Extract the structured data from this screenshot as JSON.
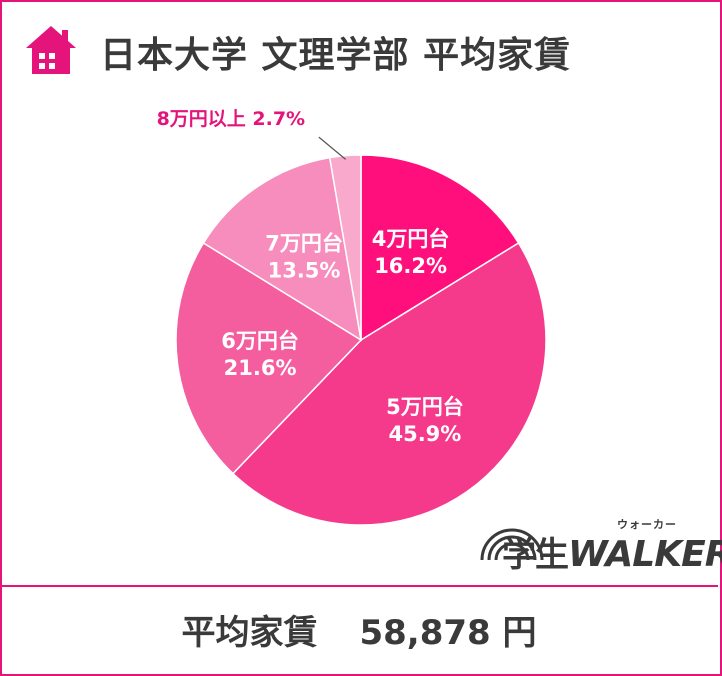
{
  "header": {
    "title": "日本大学 文理学部 平均家賃",
    "icon": "house-icon"
  },
  "chart_data": {
    "type": "pie",
    "categories": [
      "4万円台",
      "5万円台",
      "6万円台",
      "7万円台",
      "8万円以上"
    ],
    "values": [
      16.2,
      45.9,
      21.6,
      13.5,
      2.7
    ],
    "labels": [
      "4万円台",
      "5万円台",
      "6万円台",
      "7万円台",
      "8万円以上"
    ],
    "percent_labels": [
      "16.2%",
      "45.9%",
      "21.6%",
      "13.5%",
      "2.7%"
    ],
    "colors": [
      "#ff0f7b",
      "#f53a8c",
      "#f45d9e",
      "#f78dbc",
      "#f8a9cc"
    ],
    "label_colors": [
      "#ffffff",
      "#ffffff",
      "#ffffff",
      "#ffffff",
      "#e4147a"
    ],
    "start_angle": "12 o'clock",
    "direction": "clockwise",
    "legend": "none"
  },
  "footer": {
    "label": "平均家賃",
    "value": "58,878 円"
  },
  "logo": {
    "text_ja": "学生",
    "text_en": "WALKER",
    "ruby": "ウォーカー"
  },
  "colors": {
    "accent": "#e4147a",
    "text": "#3a3a3a"
  }
}
